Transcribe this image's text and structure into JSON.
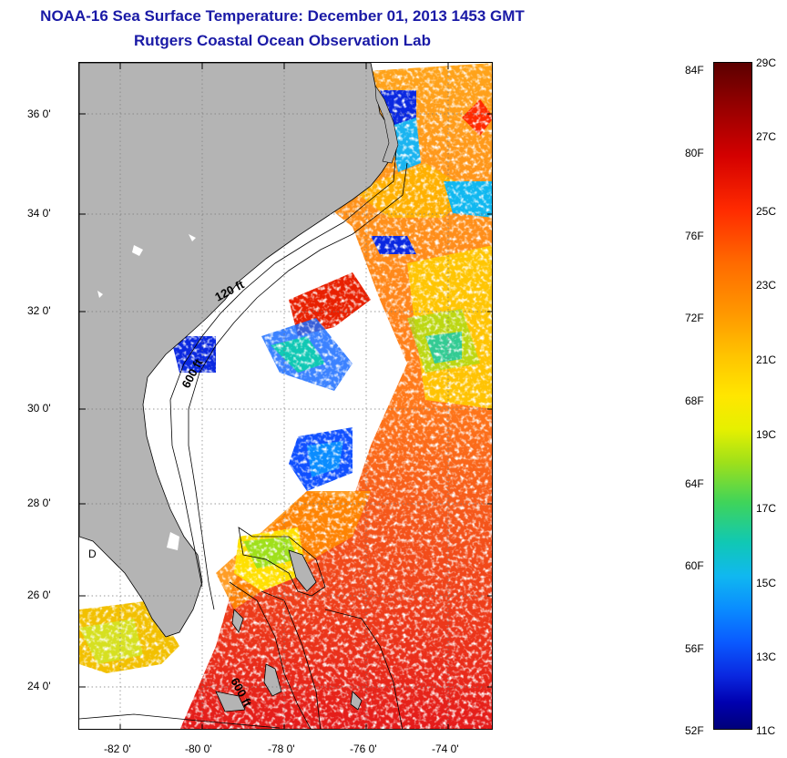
{
  "title": {
    "line1": "NOAA-16 Sea Surface Temperature:  December 01, 2013 1453 GMT",
    "line2": "Rutgers Coastal Ocean Observation Lab"
  },
  "map": {
    "lat_ticks": [
      "36 0'",
      "34 0'",
      "32 0'",
      "30 0'",
      "28 0'",
      "26 0'",
      "24 0'"
    ],
    "lon_ticks": [
      "-82 0'",
      "-80 0'",
      "-78 0'",
      "-76 0'",
      "-74 0'"
    ],
    "isobath_labels": [
      "120 ft",
      "600 ft",
      "600 ft"
    ],
    "inland_marker": "D"
  },
  "colorbar": {
    "fahrenheit_labels": [
      "84F",
      "80F",
      "76F",
      "72F",
      "68F",
      "64F",
      "60F",
      "56F",
      "52F"
    ],
    "celsius_labels": [
      "29C",
      "27C",
      "25C",
      "23C",
      "21C",
      "19C",
      "17C",
      "15C",
      "13C",
      "11C"
    ]
  },
  "colors": {
    "title": "#1a1aa6",
    "land": "#b4b4b4",
    "grid": "#7a7a7a"
  }
}
